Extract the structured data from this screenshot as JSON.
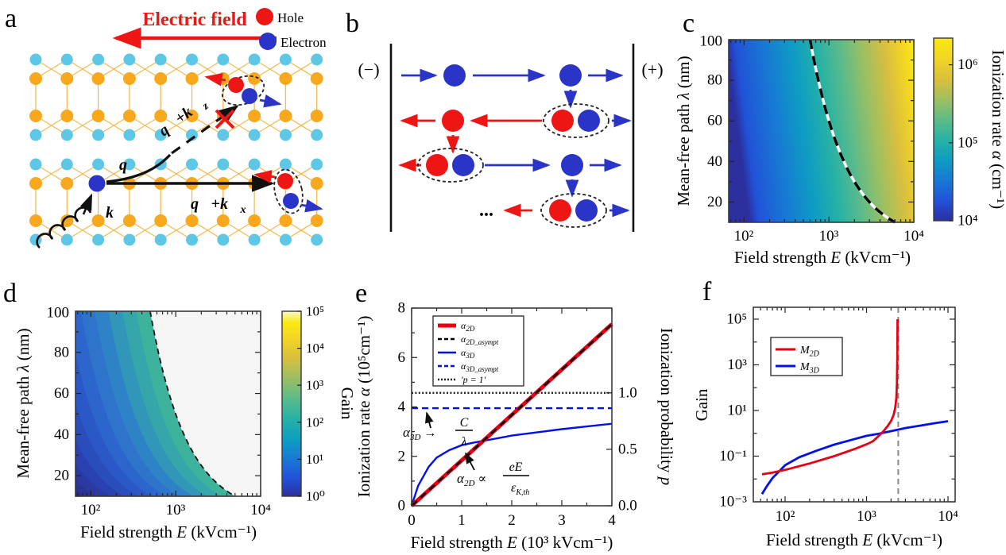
{
  "colors": {
    "hole": "#ee1515",
    "electron": "#2a35c8",
    "atom_cyan": "#5ec7e6",
    "atom_orange": "#f7a81c",
    "bond": "#f2bb52",
    "red_line": "#e60012",
    "blue_line": "#0010ee",
    "gray_dash": "#8a8a8a",
    "empty_region": "#f5f5f6",
    "cbar_d_top": "#fbf7cf",
    "parula": [
      "#2c2f9e",
      "#2152d8",
      "#1878d4",
      "#0e9cc3",
      "#26b2a5",
      "#5bbb8a",
      "#9cbf62",
      "#d9bf3e",
      "#f2d525",
      "#f9ea12"
    ],
    "gain_stops": [
      [
        0,
        "#2c2a80"
      ],
      [
        0.25,
        "#2a3fae"
      ],
      [
        0.5,
        "#2b5ecd"
      ],
      [
        0.72,
        "#2e82c8"
      ],
      [
        0.88,
        "#33a2ae"
      ],
      [
        1,
        "#3db39b"
      ]
    ]
  },
  "panels": {
    "a": {
      "label": "a",
      "electric_field": "Electric field",
      "hole": "Hole",
      "electron": "Electron",
      "vec_q": "q⃗",
      "vec_k": "k⃗",
      "vec_qkx_main": "q⃗+k⃗",
      "vec_qkx_sub": "x",
      "vec_qkz_main": "q⃗+k⃗",
      "vec_qkz_sub": "z"
    },
    "b": {
      "label": "b",
      "neg": "(−)",
      "pos": "(+)",
      "dots": "..."
    },
    "c": {
      "label": "c",
      "xticks": [
        "10²",
        "10³",
        "10⁴"
      ],
      "yticks": [
        "100",
        "80",
        "60",
        "40",
        "20"
      ],
      "xlabel": [
        "Field strength ",
        "E",
        " (kVcm⁻¹)"
      ],
      "ylabel": [
        "Mean-free path ",
        "λ",
        " (nm)"
      ],
      "cbar_ticks": [
        "10⁶",
        "10⁵",
        "10⁴"
      ],
      "cbar_label": [
        "Ionization rate ",
        "α",
        " (cm⁻¹)"
      ]
    },
    "d": {
      "label": "d",
      "xticks": [
        "10²",
        "10³",
        "10⁴"
      ],
      "yticks": [
        "100",
        "80",
        "60",
        "40",
        "20"
      ],
      "xlabel": [
        "Field strength ",
        "E",
        " (kVcm⁻¹)"
      ],
      "ylabel": [
        "Mean-free path ",
        "λ",
        " (nm)"
      ],
      "cbar_ticks": [
        "10⁵",
        "10⁴",
        "10³",
        "10²",
        "10¹",
        "10⁰"
      ],
      "cbar_label": "Gain"
    },
    "e": {
      "label": "e",
      "xticks": [
        "0",
        "1",
        "2",
        "3",
        "4"
      ],
      "yticks_left": [
        "8",
        "6",
        "4",
        "2",
        "0"
      ],
      "yticks_right": [
        "1.0",
        "0.5",
        "0.0"
      ],
      "xlabel": [
        "Field strength ",
        "E",
        " (10³ kVcm⁻¹)"
      ],
      "ylabel_left": [
        "Ionization rate ",
        "α",
        " (10⁵cm⁻¹)"
      ],
      "ylabel_right": [
        "Ionization probability ",
        "p"
      ],
      "legend": [
        {
          "main": "α",
          "sub": "2D"
        },
        {
          "main": "α",
          "sub": "2D_asympt"
        },
        {
          "main": "α",
          "sub": "3D"
        },
        {
          "main": "α",
          "sub": "3D_asympt"
        },
        {
          "main": "'p = 1'",
          "sub": ""
        }
      ],
      "ann1": {
        "alpha": "α",
        "sub": "3D",
        "arrow": " →",
        "num": "C",
        "den": "λ"
      },
      "ann2": {
        "alpha": "α",
        "sub": "2D",
        "prop": " ∝",
        "num": "eE",
        "den": "ε",
        "densub": "K,th"
      }
    },
    "f": {
      "label": "f",
      "xticks": [
        "10²",
        "10³",
        "10⁴"
      ],
      "yticks": [
        "10⁵",
        "10³",
        "10¹",
        "10⁻¹",
        "10⁻³"
      ],
      "xlabel": [
        "Field strength ",
        "E",
        " (kVcm⁻¹)"
      ],
      "ylabel": "Gain",
      "legend": [
        {
          "main": "M",
          "sub": "2D"
        },
        {
          "main": "M",
          "sub": "3D"
        }
      ]
    }
  },
  "chart_data": [
    {
      "id": "c",
      "type": "heatmap",
      "xlabel": "Field strength E (kVcm⁻¹)",
      "ylabel": "Mean-free path λ (nm)",
      "x_scale": "log",
      "x_range": [
        66,
        10000
      ],
      "y_range": [
        10,
        100
      ],
      "z_label": "Ionization rate α (cm⁻¹)",
      "z_scale": "log",
      "z_range": [
        10000,
        2200000
      ],
      "z_ticks": [
        10000,
        100000,
        1000000
      ],
      "gradient_note": "ionization rate grows mainly with E: deep blue ~10⁴ cm⁻¹ at low E to yellow >10⁶ cm⁻¹ at 10⁴ kVcm⁻¹, weakly increasing with λ",
      "boundary": {
        "curve": "E·λ = const",
        "const_kV_nm": 60000,
        "style": "black-white dashed",
        "points_E_lambda": [
          [
            600,
            100
          ],
          [
            750,
            80
          ],
          [
            1000,
            60
          ],
          [
            1500,
            40
          ],
          [
            3000,
            20
          ],
          [
            6000,
            10
          ]
        ]
      }
    },
    {
      "id": "d",
      "type": "heatmap",
      "xlabel": "Field strength E (kVcm⁻¹)",
      "ylabel": "Mean-free path λ (nm)",
      "x_scale": "log",
      "x_range": [
        66,
        10000
      ],
      "y_range": [
        10,
        100
      ],
      "z_label": "Gain",
      "z_scale": "log",
      "z_range": [
        1,
        100000
      ],
      "z_ticks": [
        1,
        10,
        100,
        1000,
        10000,
        100000
      ],
      "gradient_note": "gain rises from 10⁰ (dark navy, bottom-left) to ~10²–10³ (teal) at the dashed boundary; white region beyond it = diverging gain",
      "boundary": {
        "curve": "E·λ = const",
        "const_kV_nm": 50000,
        "style": "black dashed",
        "points_E_lambda": [
          [
            500,
            100
          ],
          [
            625,
            80
          ],
          [
            833,
            60
          ],
          [
            1250,
            40
          ],
          [
            2500,
            20
          ],
          [
            5000,
            10
          ]
        ]
      }
    },
    {
      "id": "e",
      "type": "line",
      "xlabel": "Field strength E (10³ kVcm⁻¹)",
      "x_range": [
        0,
        4
      ],
      "ylabel_left": "Ionization rate α (10⁵cm⁻¹)",
      "y_range_left": [
        0,
        8
      ],
      "ylabel_right": "Ionization probability p",
      "y_right_tick_vals": [
        0.0,
        0.5,
        1.0
      ],
      "p_equals_1_alpha_level": 4.57,
      "series": [
        {
          "name": "α2D",
          "style": "solid-thick",
          "color": "#e60012",
          "x": [
            0,
            4
          ],
          "y": [
            0,
            7.35
          ]
        },
        {
          "name": "α2D_asympt",
          "style": "dashed",
          "color": "#000000",
          "x": [
            0,
            4
          ],
          "y": [
            0,
            7.35
          ]
        },
        {
          "name": "α3D",
          "style": "solid",
          "color": "#0010ee",
          "x": [
            0,
            0.13,
            0.34,
            0.5,
            0.75,
            1,
            1.25,
            1.5,
            2,
            2.5,
            3,
            3.5,
            4
          ],
          "y": [
            0,
            0.81,
            1.57,
            1.95,
            2.25,
            2.45,
            2.56,
            2.65,
            2.84,
            2.97,
            3.1,
            3.21,
            3.32
          ]
        },
        {
          "name": "α3D_asympt",
          "style": "dashed",
          "color": "#0010ee",
          "x": [
            0,
            4
          ],
          "y": [
            3.95,
            3.95
          ]
        },
        {
          "name": "p = 1",
          "style": "dotted",
          "color": "#222222",
          "x": [
            0,
            4
          ],
          "y": [
            4.57,
            4.57
          ]
        }
      ],
      "annotations": [
        "α3D → C/λ",
        "α2D ∝ eE/ε_K,th"
      ]
    },
    {
      "id": "f",
      "type": "line",
      "x_scale": "log",
      "y_scale": "log",
      "xlabel": "Field strength E (kVcm⁻¹)",
      "ylabel": "Gain",
      "x_range": [
        41,
        10000
      ],
      "y_range": [
        0.001,
        100000
      ],
      "series": [
        {
          "name": "M2D",
          "color": "#e60012",
          "x": [
            52,
            70,
            100,
            200,
            400,
            700,
            1000,
            1200,
            1400,
            1600,
            1800,
            2000,
            2150,
            2250,
            2320,
            2360,
            2385,
            2395,
            2400
          ],
          "y": [
            0.016,
            0.019,
            0.025,
            0.048,
            0.1,
            0.2,
            0.33,
            0.45,
            0.75,
            1.2,
            2,
            3.5,
            6.5,
            13,
            35,
            150,
            2000,
            20000,
            100000
          ]
        },
        {
          "name": "M3D",
          "color": "#0010ee",
          "x": [
            52,
            60,
            70,
            85,
            100,
            150,
            250,
            400,
            700,
            1000,
            1400,
            2000,
            3000,
            5000,
            7000,
            10000
          ],
          "y": [
            0.0022,
            0.005,
            0.011,
            0.022,
            0.04,
            0.09,
            0.18,
            0.32,
            0.55,
            0.78,
            0.95,
            1.25,
            1.7,
            2.3,
            2.8,
            3.4
          ]
        }
      ],
      "vline": {
        "x": 2450,
        "style": "gray dashed",
        "meaning": "2D gain divergence threshold"
      }
    }
  ]
}
